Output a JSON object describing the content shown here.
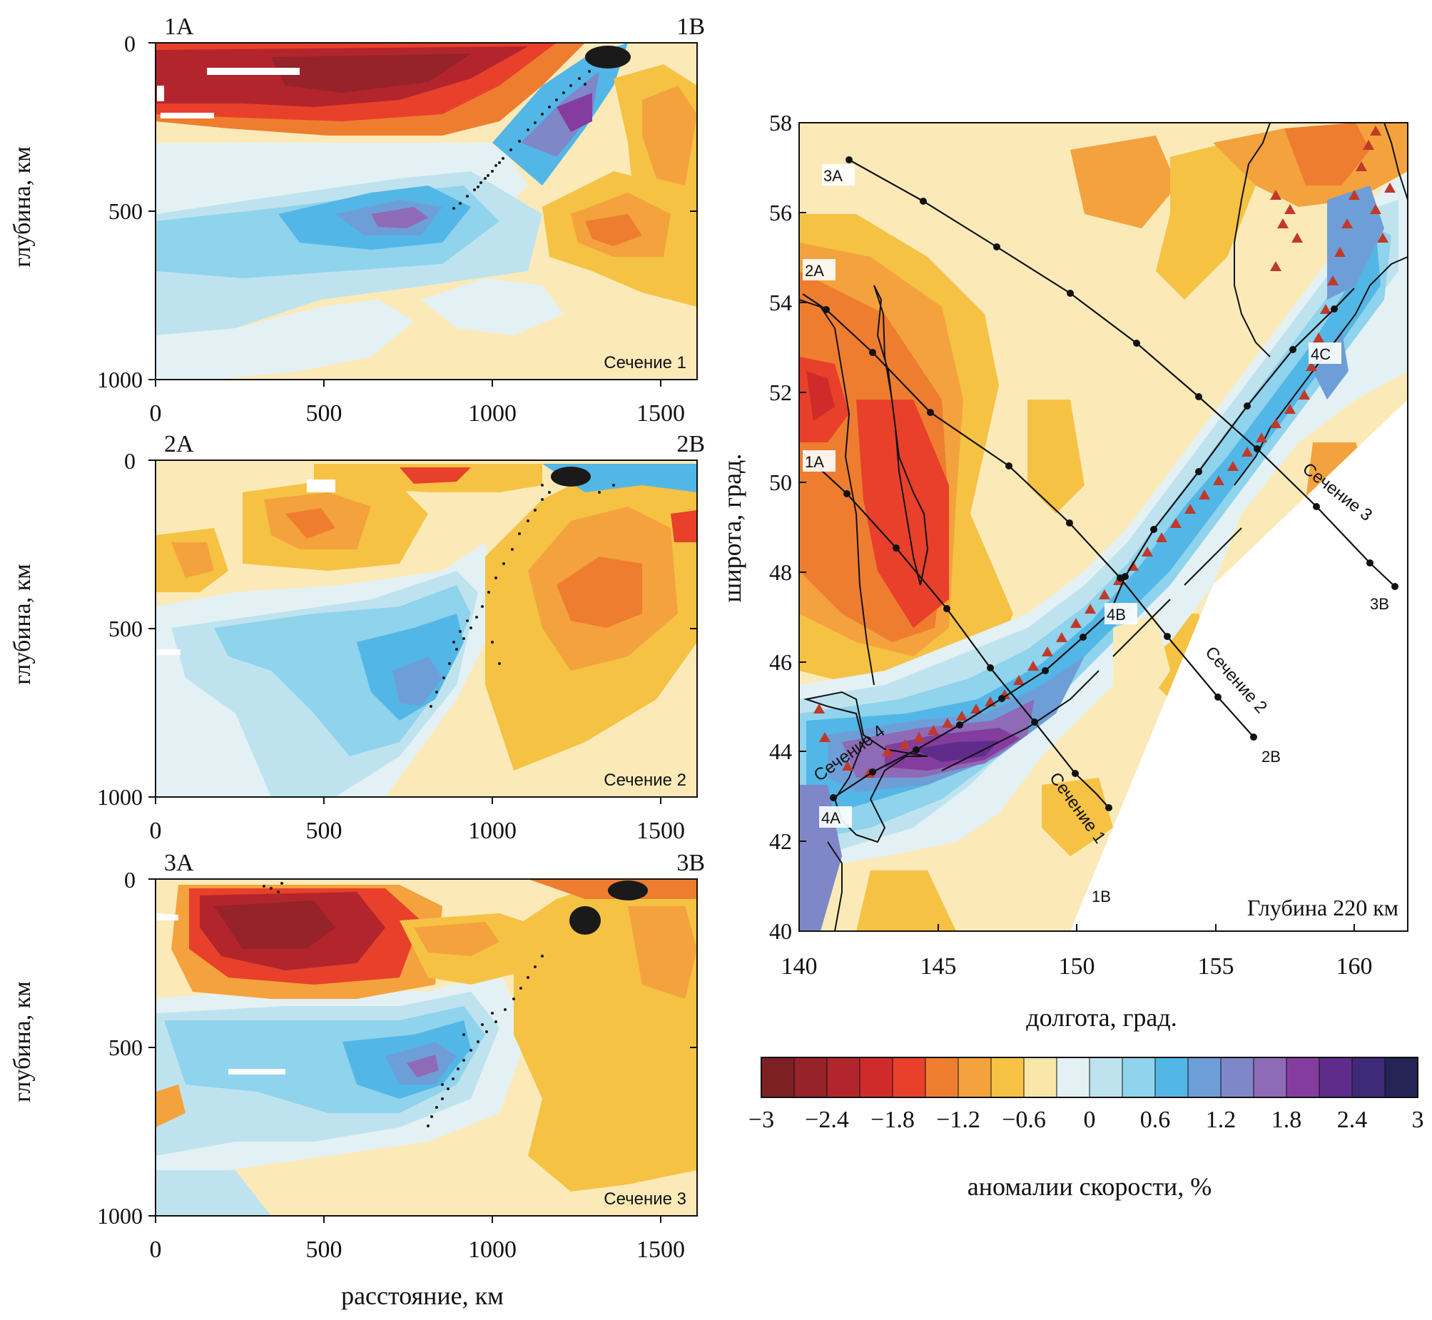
{
  "sections": [
    {
      "id": 1,
      "caption": "Сечение 1",
      "left_label": "1А",
      "right_label": "1В",
      "ylabel": "глубина, км",
      "yticks": [
        "0",
        "500",
        "1000"
      ],
      "xticks": [
        "0",
        "500",
        "1000",
        "1500"
      ]
    },
    {
      "id": 2,
      "caption": "Сечение 2",
      "left_label": "2А",
      "right_label": "2В",
      "ylabel": "глубина, км",
      "yticks": [
        "0",
        "500",
        "1000"
      ],
      "xticks": [
        "0",
        "500",
        "1000",
        "1500"
      ]
    },
    {
      "id": 3,
      "caption": "Сечение 3",
      "left_label": "3А",
      "right_label": "3В",
      "ylabel": "глубина, км",
      "yticks": [
        "0",
        "500",
        "1000"
      ],
      "xticks": [
        "0",
        "500",
        "1000",
        "1500"
      ],
      "xlabel": "расстояние, км"
    }
  ],
  "map": {
    "depth_label": "Глубина 220 км",
    "xlabel": "долгота, град.",
    "ylabel": "широта, град.",
    "xticks": [
      "140",
      "145",
      "150",
      "155",
      "160"
    ],
    "yticks": [
      "40",
      "42",
      "44",
      "46",
      "48",
      "50",
      "52",
      "54",
      "56",
      "58"
    ],
    "profiles": [
      {
        "caption": "Сечение 1",
        "start": "1А",
        "end": "1В"
      },
      {
        "caption": "Сечение 2",
        "start": "2А",
        "end": "2В"
      },
      {
        "caption": "Сечение 3",
        "start": "3А",
        "end": "3В"
      },
      {
        "caption": "Сечение 4",
        "start": "4А",
        "end": "4С",
        "mid": "4В"
      }
    ]
  },
  "colorbar": {
    "tick_labels": [
      "−3",
      "−2.4",
      "−1.8",
      "−1.2",
      "−0.6",
      "0",
      "0.6",
      "1.2",
      "1.8",
      "2.4",
      "3"
    ],
    "label": "аномалии скорости, %",
    "colors": [
      "#7d2024",
      "#96222a",
      "#b3252d",
      "#cf2b2b",
      "#e8402a",
      "#ee7d30",
      "#f4a23d",
      "#f5c244",
      "#f8e6a8",
      "#e3f1f5",
      "#bfe3ee",
      "#8fd3ec",
      "#52b7e6",
      "#6e9ed8",
      "#7f87c9",
      "#8e6ab7",
      "#843d9f",
      "#5f2c8b",
      "#3f2a78",
      "#242457"
    ]
  }
}
